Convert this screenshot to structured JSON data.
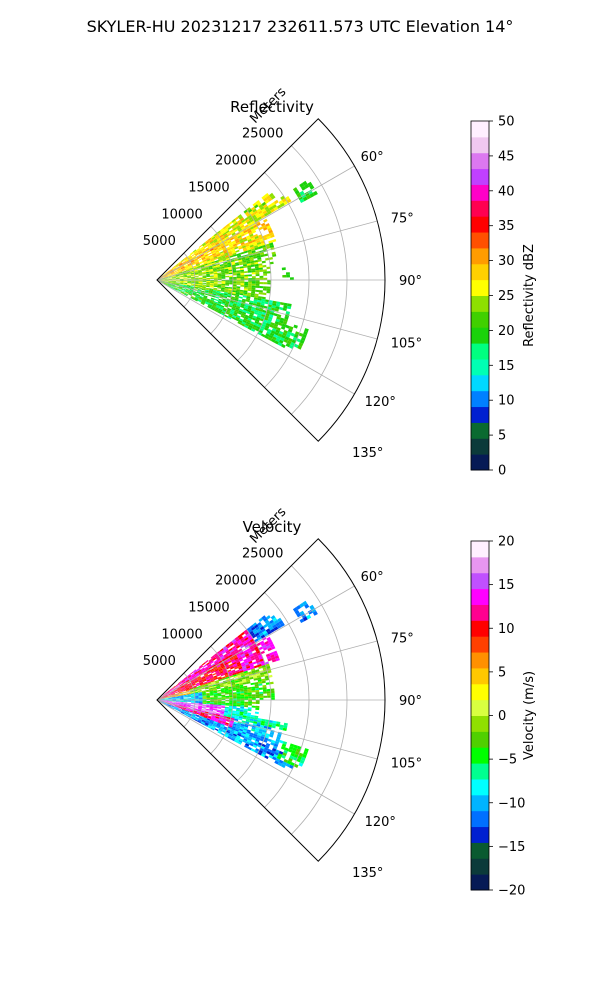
{
  "figure": {
    "suptitle": "SKYLER-HU  20231217  232611.573 UTC Elevation 14°"
  },
  "chart_data": [
    {
      "type": "polar-sector",
      "title": "Reflectivity",
      "radial_label": "Meters",
      "azimuth_range_deg": [
        45,
        135
      ],
      "azimuth_ticks": [
        "60°",
        "75°",
        "90°",
        "105°",
        "120°",
        "135°"
      ],
      "azimuth_tick_values": [
        60,
        75,
        90,
        105,
        120,
        135
      ],
      "radial_range_m": [
        0,
        30000
      ],
      "radial_ticks": [
        "5000",
        "10000",
        "15000",
        "20000",
        "25000"
      ],
      "radial_tick_values": [
        5000,
        10000,
        15000,
        20000,
        25000
      ],
      "grid": true,
      "colorbar": {
        "label": "Reflectivity dBZ",
        "range": [
          0,
          50
        ],
        "ticks": [
          "0",
          "5",
          "10",
          "15",
          "20",
          "25",
          "30",
          "35",
          "40",
          "45",
          "50"
        ],
        "tick_values": [
          0,
          5,
          10,
          15,
          20,
          25,
          30,
          35,
          40,
          45,
          50
        ],
        "colors": [
          "#061a55",
          "#0b3a3a",
          "#0a6a30",
          "#0020d0",
          "#0080ff",
          "#00d8ff",
          "#00ffb4",
          "#00ff80",
          "#1ad20a",
          "#40d000",
          "#8ee000",
          "#ffff00",
          "#ffd000",
          "#ff9c00",
          "#ff5000",
          "#ff0000",
          "#ff0050",
          "#ff00c8",
          "#c040ff",
          "#dc78f0",
          "#f0c8f0",
          "#fff0ff"
        ]
      },
      "echo_data": {
        "description_values": [
          {
            "az": [
              50,
              70
            ],
            "r": [
              0,
              20000
            ],
            "value_range": [
              20,
              30
            ]
          },
          {
            "az": [
              70,
              100
            ],
            "r": [
              0,
              18000
            ],
            "value_range": [
              15,
              25
            ]
          },
          {
            "az": [
              100,
              115
            ],
            "r": [
              5000,
              20000
            ],
            "value_range": [
              15,
              22
            ]
          },
          {
            "az": [
              58,
              62
            ],
            "r": [
              20000,
              24000
            ],
            "value_range": [
              15,
              20
            ]
          }
        ]
      }
    },
    {
      "type": "polar-sector",
      "title": "Velocity",
      "radial_label": "Meters",
      "azimuth_range_deg": [
        45,
        135
      ],
      "azimuth_ticks": [
        "60°",
        "75°",
        "90°",
        "105°",
        "120°",
        "135°"
      ],
      "azimuth_tick_values": [
        60,
        75,
        90,
        105,
        120,
        135
      ],
      "radial_range_m": [
        0,
        30000
      ],
      "radial_ticks": [
        "5000",
        "10000",
        "15000",
        "20000",
        "25000"
      ],
      "radial_tick_values": [
        5000,
        10000,
        15000,
        20000,
        25000
      ],
      "grid": true,
      "colorbar": {
        "label": "Velocity (m/s)",
        "range": [
          -20,
          20
        ],
        "ticks": [
          "−20",
          "−15",
          "−10",
          "−5",
          "0",
          "5",
          "10",
          "15",
          "20"
        ],
        "tick_values": [
          -20,
          -15,
          -10,
          -5,
          0,
          5,
          10,
          15,
          20
        ],
        "colors": [
          "#061a55",
          "#0b3a3a",
          "#0a5a30",
          "#0020d0",
          "#0070ff",
          "#00b4ff",
          "#00ffff",
          "#00ff90",
          "#00ff00",
          "#50d000",
          "#90e000",
          "#d8ff40",
          "#ffff00",
          "#ffc800",
          "#ff9000",
          "#ff4000",
          "#ff0000",
          "#ff0090",
          "#ff00ff",
          "#c050ff",
          "#e896f0",
          "#fff0ff"
        ]
      },
      "echo_data": {
        "description_values": [
          {
            "az": [
              55,
              75
            ],
            "r": [
              2000,
              20000
            ],
            "value_range": [
              8,
              14
            ]
          },
          {
            "az": [
              80,
              95
            ],
            "r": [
              0,
              15000
            ],
            "value_range": [
              -10,
              0
            ]
          },
          {
            "az": [
              100,
              115
            ],
            "r": [
              3000,
              18000
            ],
            "value_range": [
              10,
              18
            ]
          },
          {
            "az": [
              108,
              120
            ],
            "r": [
              8000,
              20000
            ],
            "value_range": [
              -12,
              -5
            ]
          }
        ]
      }
    }
  ]
}
